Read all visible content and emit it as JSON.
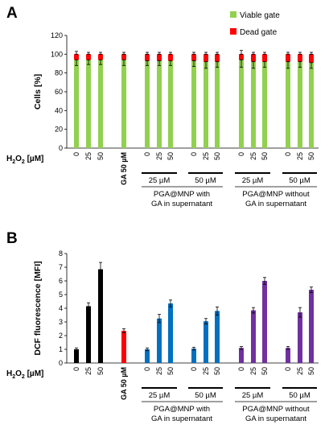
{
  "chart_data": [
    {
      "panel": "A",
      "type": "bar",
      "stacked": true,
      "ylabel": "Cells [%]",
      "ylim": [
        0,
        120
      ],
      "yticks": [
        0,
        20,
        40,
        60,
        80,
        100,
        120
      ],
      "x_prefix": "H₂O₂ [µM]",
      "categories": [
        "0",
        "25",
        "50",
        "50",
        "0",
        "25",
        "50",
        "0",
        "25",
        "50",
        "0",
        "25",
        "50",
        "0",
        "25",
        "50"
      ],
      "category_groups": [
        0,
        0,
        0,
        1,
        2,
        2,
        2,
        3,
        3,
        3,
        4,
        4,
        4,
        5,
        5,
        5
      ],
      "series": [
        {
          "name": "Viable gate",
          "color": "#92d050",
          "values": [
            94,
            94,
            94,
            94,
            93,
            93,
            93,
            93,
            92,
            92,
            94,
            92,
            92,
            92,
            92,
            91
          ],
          "errors": [
            6,
            5,
            5,
            6,
            5,
            5,
            5,
            6,
            7,
            6,
            8,
            7,
            6,
            7,
            6,
            6
          ]
        },
        {
          "name": "Dead gate",
          "color": "#ff0000",
          "values": [
            6,
            6,
            6,
            6,
            7,
            7,
            7,
            7,
            8,
            8,
            6,
            8,
            8,
            8,
            8,
            9
          ],
          "errors": [
            3,
            2,
            2,
            2,
            2,
            2,
            2,
            2,
            2,
            2,
            4,
            2,
            2,
            2,
            2,
            2
          ]
        }
      ],
      "legend": "top-right",
      "grid": false
    },
    {
      "panel": "B",
      "type": "bar",
      "ylabel": "DCF fluorescence [MFI]",
      "ylim": [
        0,
        8
      ],
      "yticks": [
        0,
        1,
        2,
        3,
        4,
        5,
        6,
        7,
        8
      ],
      "x_prefix": "H₂O₂ [µM]",
      "categories": [
        "0",
        "25",
        "50",
        "50",
        "0",
        "25",
        "50",
        "0",
        "25",
        "50",
        "0",
        "25",
        "50",
        "0",
        "25",
        "50"
      ],
      "category_groups": [
        0,
        0,
        0,
        1,
        2,
        2,
        2,
        3,
        3,
        3,
        4,
        4,
        4,
        5,
        5,
        5
      ],
      "values": [
        1.0,
        4.15,
        6.85,
        2.35,
        1.0,
        3.25,
        4.35,
        1.05,
        3.05,
        3.8,
        1.1,
        3.85,
        6.0,
        1.1,
        3.7,
        5.35
      ],
      "errors": [
        0.1,
        0.25,
        0.5,
        0.15,
        0.1,
        0.3,
        0.25,
        0.1,
        0.2,
        0.3,
        0.1,
        0.2,
        0.25,
        0.1,
        0.35,
        0.2
      ],
      "colors": [
        "#000000",
        "#000000",
        "#000000",
        "#ff0000",
        "#0070c0",
        "#0070c0",
        "#0070c0",
        "#0070c0",
        "#0070c0",
        "#0070c0",
        "#7030a0",
        "#7030a0",
        "#7030a0",
        "#7030a0",
        "#7030a0",
        "#7030a0"
      ],
      "grid": false
    }
  ],
  "panel_labels": [
    "A",
    "B"
  ],
  "group_labels": {
    "ga": "GA 50 µM",
    "sub1": "25 µM",
    "sub2": "50 µM",
    "sub3": "25 µM",
    "sub4": "50 µM",
    "main1_line1": "PGA@MNP with",
    "main1_line2": "GA in supernatant",
    "main2_line1": "PGA@MNP without",
    "main2_line2": "GA in supernatant"
  }
}
